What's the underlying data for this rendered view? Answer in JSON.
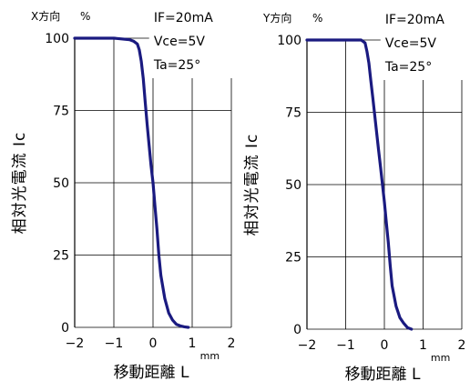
{
  "chart_data": [
    {
      "type": "line",
      "panel_label": "X方向",
      "ylabel_unit": "%",
      "ylabel": "相対光電流 Ic",
      "xlabel": "移動距離 L",
      "xlabel_unit": "mm",
      "conditions": [
        "IF=20mA",
        "Vce=5V",
        "Ta=25°"
      ],
      "xlim": [
        -2,
        2
      ],
      "ylim": [
        0,
        100
      ],
      "xticks": [
        "−2",
        "−1",
        "0",
        "1",
        "2"
      ],
      "yticks": [
        "0",
        "25",
        "50",
        "75",
        "100"
      ],
      "grid": true,
      "color": "#1a1a80",
      "x": [
        -2.0,
        -1.5,
        -1.0,
        -0.6,
        -0.5,
        -0.4,
        -0.35,
        -0.3,
        -0.25,
        -0.2,
        -0.15,
        -0.1,
        -0.05,
        0.0,
        0.05,
        0.1,
        0.15,
        0.2,
        0.3,
        0.4,
        0.5,
        0.6,
        0.7,
        0.8,
        0.9
      ],
      "y": [
        100,
        100,
        100,
        99.5,
        99,
        98,
        96,
        92,
        86,
        78,
        70,
        63,
        56,
        50,
        42,
        34,
        25,
        18,
        10,
        5,
        2.5,
        1,
        0.5,
        0.2,
        0
      ]
    },
    {
      "type": "line",
      "panel_label": "Y方向",
      "ylabel_unit": "%",
      "ylabel": "相対光電流 Ic",
      "xlabel": "移動距離 L",
      "xlabel_unit": "mm",
      "conditions": [
        "IF=20mA",
        "Vce=5V",
        "Ta=25°"
      ],
      "xlim": [
        -2,
        2
      ],
      "ylim": [
        0,
        100
      ],
      "xticks": [
        "−2",
        "−1",
        "0",
        "1",
        "2"
      ],
      "yticks": [
        "0",
        "25",
        "50",
        "75",
        "100"
      ],
      "grid": true,
      "color": "#1a1a80",
      "x": [
        -2.0,
        -1.5,
        -1.0,
        -0.6,
        -0.5,
        -0.45,
        -0.4,
        -0.35,
        -0.3,
        -0.25,
        -0.2,
        -0.15,
        -0.1,
        -0.05,
        0.0,
        0.05,
        0.1,
        0.15,
        0.2,
        0.3,
        0.4,
        0.5,
        0.6,
        0.7
      ],
      "y": [
        100,
        100,
        100,
        100,
        99,
        96,
        92,
        86,
        80,
        74,
        68,
        62,
        56,
        50,
        44,
        37,
        30,
        22,
        15,
        8,
        4,
        2,
        0.5,
        0
      ]
    }
  ]
}
